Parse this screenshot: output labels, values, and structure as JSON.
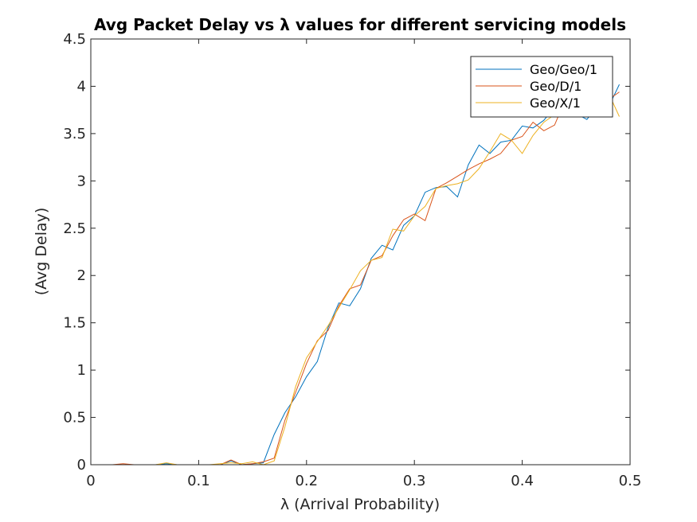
{
  "chart_data": {
    "type": "line",
    "title": "Avg Packet Delay vs λ values for different servicing models",
    "xlabel": "λ (Arrival Probability)",
    "ylabel": "(Avg Delay)",
    "xlim": [
      0,
      0.5
    ],
    "ylim": [
      0,
      4.5
    ],
    "xticks": [
      "0",
      "0.1",
      "0.2",
      "0.3",
      "0.4",
      "0.5"
    ],
    "yticks": [
      "0",
      "0.5",
      "1",
      "1.5",
      "2",
      "2.5",
      "3",
      "3.5",
      "4",
      "4.5"
    ],
    "grid": false,
    "legend_position": "top-right",
    "x": [
      0.01,
      0.02,
      0.03,
      0.04,
      0.05,
      0.06,
      0.07,
      0.08,
      0.09,
      0.1,
      0.11,
      0.12,
      0.13,
      0.14,
      0.15,
      0.16,
      0.17,
      0.18,
      0.19,
      0.2,
      0.21,
      0.22,
      0.23,
      0.24,
      0.25,
      0.26,
      0.27,
      0.28,
      0.29,
      0.3,
      0.31,
      0.32,
      0.33,
      0.34,
      0.35,
      0.36,
      0.37,
      0.38,
      0.39,
      0.4,
      0.41,
      0.42,
      0.43,
      0.44,
      0.45,
      0.46,
      0.47,
      0.48,
      0.49
    ],
    "series": [
      {
        "name": "Geo/Geo/1",
        "color": "#0072BD",
        "values": [
          0,
          0,
          0,
          0,
          0,
          0,
          0.01,
          0,
          0,
          0,
          0,
          0,
          0.04,
          0,
          0.01,
          0.02,
          0.32,
          0.55,
          0.72,
          0.93,
          1.09,
          1.45,
          1.71,
          1.68,
          1.86,
          2.18,
          2.32,
          2.27,
          2.53,
          2.63,
          2.88,
          2.93,
          2.94,
          2.83,
          3.17,
          3.38,
          3.29,
          3.41,
          3.43,
          3.58,
          3.56,
          3.64,
          3.78,
          3.75,
          3.71,
          3.65,
          3.8,
          3.78,
          4.02
        ]
      },
      {
        "name": "Geo/D/1",
        "color": "#D95319",
        "values": [
          0,
          0,
          0.01,
          0,
          0,
          0,
          0,
          0,
          0,
          0,
          0,
          0,
          0.05,
          0,
          0.01,
          0.03,
          0.07,
          0.47,
          0.77,
          1.07,
          1.31,
          1.42,
          1.68,
          1.86,
          1.9,
          2.16,
          2.21,
          2.42,
          2.59,
          2.65,
          2.58,
          2.92,
          2.98,
          3.05,
          3.12,
          3.18,
          3.23,
          3.29,
          3.43,
          3.47,
          3.62,
          3.53,
          3.59,
          3.86,
          3.8,
          3.77,
          3.79,
          3.86,
          3.94
        ]
      },
      {
        "name": "Geo/X/1",
        "color": "#EDB120",
        "values": [
          0,
          0,
          0,
          0,
          0,
          0,
          0.02,
          0,
          0,
          0,
          0,
          0.01,
          0.02,
          0.01,
          0.03,
          0,
          0.04,
          0.4,
          0.83,
          1.13,
          1.3,
          1.47,
          1.66,
          1.85,
          2.05,
          2.16,
          2.19,
          2.49,
          2.47,
          2.63,
          2.73,
          2.92,
          2.95,
          2.97,
          3.01,
          3.13,
          3.31,
          3.5,
          3.43,
          3.29,
          3.48,
          3.62,
          3.7,
          3.78,
          3.82,
          3.74,
          3.8,
          3.93,
          3.68
        ]
      }
    ]
  }
}
